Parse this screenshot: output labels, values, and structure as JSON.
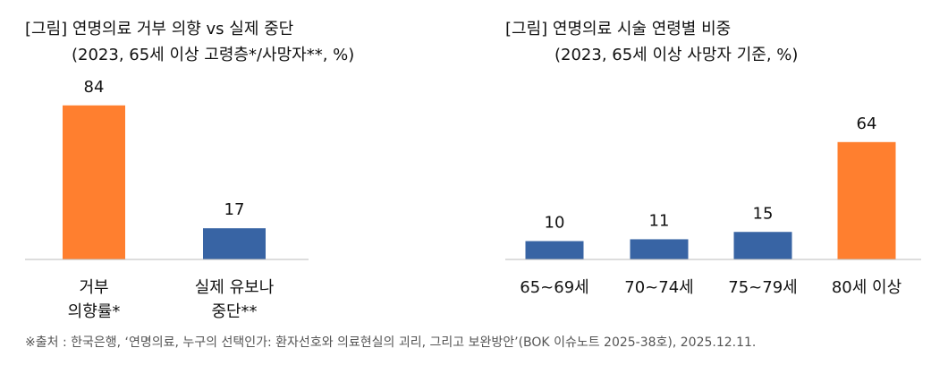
{
  "chart_data": [
    {
      "type": "bar",
      "title": [
        "[그림] 연명의료 거부 의향 vs 실제 중단",
        "(2023, 65세 이상 고령층*/사망자**, %)"
      ],
      "categories": [
        [
          "거부",
          "의향률*"
        ],
        [
          "실제 유보나",
          "중단**"
        ]
      ],
      "values": [
        84,
        17
      ],
      "colors": [
        "#ff7f2f",
        "#3864a4"
      ]
    },
    {
      "type": "bar",
      "title": [
        "[그림] 연명의료 시술 연령별 비중",
        "(2023,  65세 이상 사망자 기준, %)"
      ],
      "categories": [
        [
          "65~69세"
        ],
        [
          "70~74세"
        ],
        [
          "75~79세"
        ],
        [
          "80세 이상"
        ]
      ],
      "values": [
        10,
        11,
        15,
        64
      ],
      "colors": [
        "#3864a4",
        "#3864a4",
        "#3864a4",
        "#ff7f2f"
      ]
    }
  ],
  "source": "※출처 : 한국은행, ‘연명의료, 누구의 선택인가: 환자선호와 의료현실의 괴리, 그리고 보완방안’(BOK 이슈노트 2025-38호), 2025.12.11."
}
